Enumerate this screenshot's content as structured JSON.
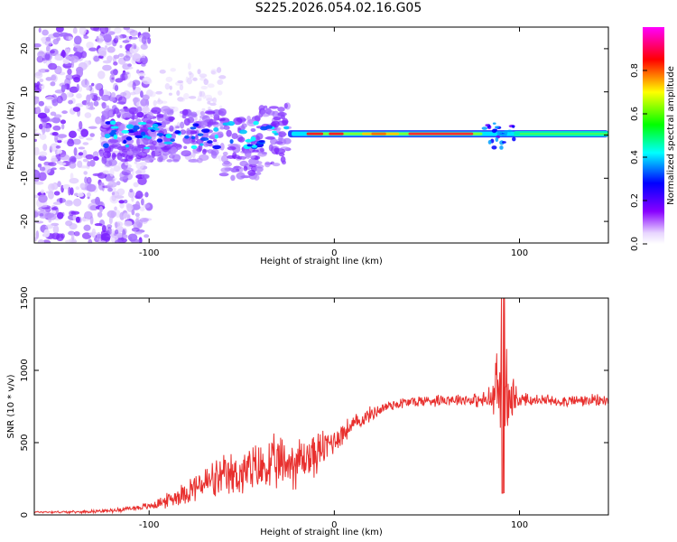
{
  "title": "S225.2026.054.02.16.G05",
  "colors": {
    "snr_line": "#e8302e",
    "axis": "#000000",
    "colormap": [
      "#ffffff",
      "#8800ff",
      "#0000ff",
      "#00ffff",
      "#00ff00",
      "#ffff00",
      "#ff0000",
      "#ff00ff"
    ]
  },
  "chart_data": [
    {
      "type": "heatmap",
      "title": "",
      "xlabel": "Height of straight line (km)",
      "ylabel": "Frequency (Hz)",
      "xlim": [
        -162,
        148
      ],
      "ylim": [
        -25,
        25
      ],
      "x_ticks": [
        -100,
        0,
        100
      ],
      "x_tick_labels": [
        "-100",
        "0",
        "100"
      ],
      "y_ticks": [
        -20,
        -10,
        0,
        10,
        20
      ],
      "y_tick_labels": [
        "-20",
        "-10",
        "0",
        "10",
        "20"
      ],
      "grid": false,
      "colorbar": {
        "label": "Normalized spectral amplitude",
        "range": [
          0,
          1
        ],
        "ticks": [
          0.0,
          0.2,
          0.4,
          0.6,
          0.8
        ],
        "tick_labels": [
          "0.0",
          "0.2",
          "0.4",
          "0.6",
          "0.8"
        ]
      },
      "regions": [
        {
          "x_range": [
            -162,
            -100
          ],
          "freq_range": [
            -25,
            25
          ],
          "amplitude": 0.05,
          "pattern": "scattered noise"
        },
        {
          "x_range": [
            -125,
            -25
          ],
          "freq_range": [
            -10,
            8
          ],
          "amplitude": 0.3,
          "pattern": "clusters"
        },
        {
          "x_range": [
            -25,
            148
          ],
          "center_freq_hz": 0.3,
          "amplitude": 0.9,
          "pattern": "narrow band"
        }
      ]
    },
    {
      "type": "line",
      "title": "",
      "xlabel": "Height of straight line (km)",
      "ylabel": "SNR (10 * v/v)",
      "xlim": [
        -162,
        148
      ],
      "ylim": [
        0,
        1500
      ],
      "x_ticks": [
        -100,
        0,
        100
      ],
      "x_tick_labels": [
        "-100",
        "0",
        "100"
      ],
      "y_ticks": [
        0,
        500,
        1000,
        1500
      ],
      "y_tick_labels": [
        "0",
        "500",
        "1000",
        "1500"
      ],
      "grid": false,
      "series": [
        {
          "name": "",
          "color": "#e8302e",
          "x": [
            -162,
            -140,
            -120,
            -100,
            -90,
            -80,
            -70,
            -60,
            -50,
            -40,
            -30,
            -20,
            -10,
            0,
            10,
            20,
            30,
            40,
            50,
            60,
            70,
            80,
            85,
            90,
            95,
            100,
            110,
            120,
            130,
            140,
            148
          ],
          "y": [
            20,
            20,
            30,
            60,
            100,
            160,
            220,
            250,
            290,
            320,
            350,
            370,
            420,
            520,
            620,
            700,
            760,
            780,
            790,
            800,
            800,
            790,
            800,
            900,
            780,
            800,
            790,
            790,
            790,
            790,
            790
          ],
          "noise_amplitude": [
            8,
            10,
            15,
            30,
            60,
            100,
            150,
            180,
            200,
            220,
            230,
            220,
            180,
            120,
            80,
            60,
            50,
            50,
            50,
            50,
            50,
            60,
            150,
            500,
            300,
            60,
            50,
            50,
            50,
            50,
            50
          ]
        }
      ]
    }
  ]
}
